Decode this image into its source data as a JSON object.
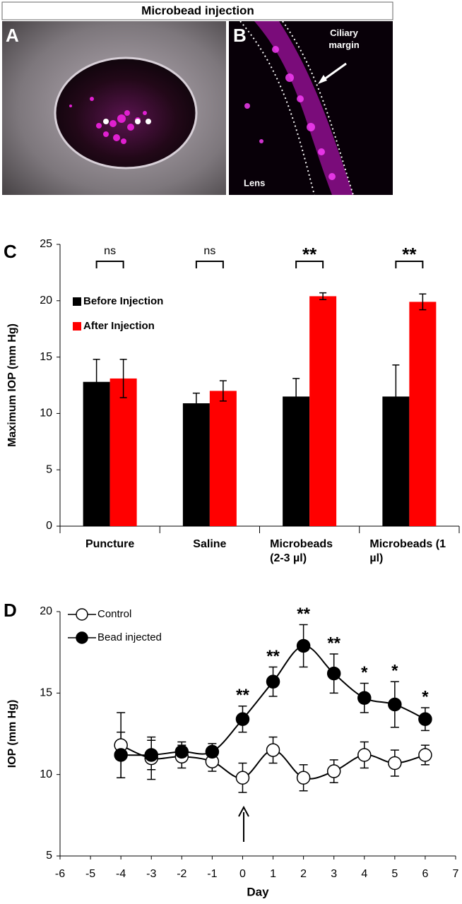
{
  "figure": {
    "title": "Microbead injection",
    "panels": [
      {
        "letter": "A"
      },
      {
        "letter": "B",
        "labels": [
          "Ciliary margin",
          "Lens"
        ]
      }
    ]
  },
  "chart_data": [
    {
      "type": "bar",
      "panel": "C",
      "y_label": "Maximum IOP (mm Hg)",
      "categories": [
        "Puncture",
        "Saline",
        "Microbeads (2-3 µl)",
        "Microbeads (1 µl)"
      ],
      "series": [
        {
          "name": "Before Injection",
          "color": "#000000",
          "values": [
            12.8,
            10.9,
            11.5,
            11.5
          ],
          "errors": [
            2.0,
            0.9,
            1.6,
            2.8
          ]
        },
        {
          "name": "After Injection",
          "color": "#ff0000",
          "values": [
            13.1,
            12.0,
            20.4,
            19.9
          ],
          "errors": [
            1.7,
            0.9,
            0.3,
            0.7
          ]
        }
      ],
      "annotations": [
        "ns",
        "ns",
        "**",
        "**"
      ],
      "ylim": [
        0,
        25
      ],
      "yticks": [
        0,
        5,
        10,
        15,
        20,
        25
      ],
      "legend": "upper left"
    },
    {
      "type": "line",
      "panel": "D",
      "x_label": "Day",
      "y_label": "IOP (mm Hg)",
      "x": [
        -4,
        -3,
        -2,
        -1,
        0,
        1,
        2,
        3,
        4,
        5,
        6
      ],
      "series": [
        {
          "name": "Control",
          "color": "#000000",
          "marker": "open",
          "values": [
            11.8,
            11.0,
            11.1,
            10.8,
            9.8,
            11.5,
            9.8,
            10.2,
            11.2,
            10.7,
            11.2
          ],
          "errors": [
            2.0,
            1.3,
            0.7,
            0.6,
            0.9,
            0.8,
            0.8,
            0.7,
            0.8,
            0.8,
            0.6
          ]
        },
        {
          "name": "Bead injected",
          "color": "#000000",
          "marker": "filled",
          "values": [
            11.2,
            11.2,
            11.4,
            11.4,
            13.4,
            15.7,
            17.9,
            16.2,
            14.7,
            14.3,
            13.4
          ],
          "errors": [
            1.4,
            0.9,
            0.6,
            0.5,
            0.8,
            0.9,
            1.3,
            1.2,
            0.9,
            1.4,
            0.7
          ]
        }
      ],
      "significance": [
        null,
        null,
        null,
        null,
        "**",
        "**",
        "**",
        "**",
        "*",
        "*",
        "*"
      ],
      "xlim": [
        -6,
        7
      ],
      "xticks": [
        -6,
        -5,
        -4,
        -3,
        -2,
        -1,
        0,
        1,
        2,
        3,
        4,
        5,
        6,
        7
      ],
      "ylim": [
        5,
        20
      ],
      "yticks": [
        5,
        10,
        15,
        20
      ],
      "legend": "upper left"
    }
  ]
}
